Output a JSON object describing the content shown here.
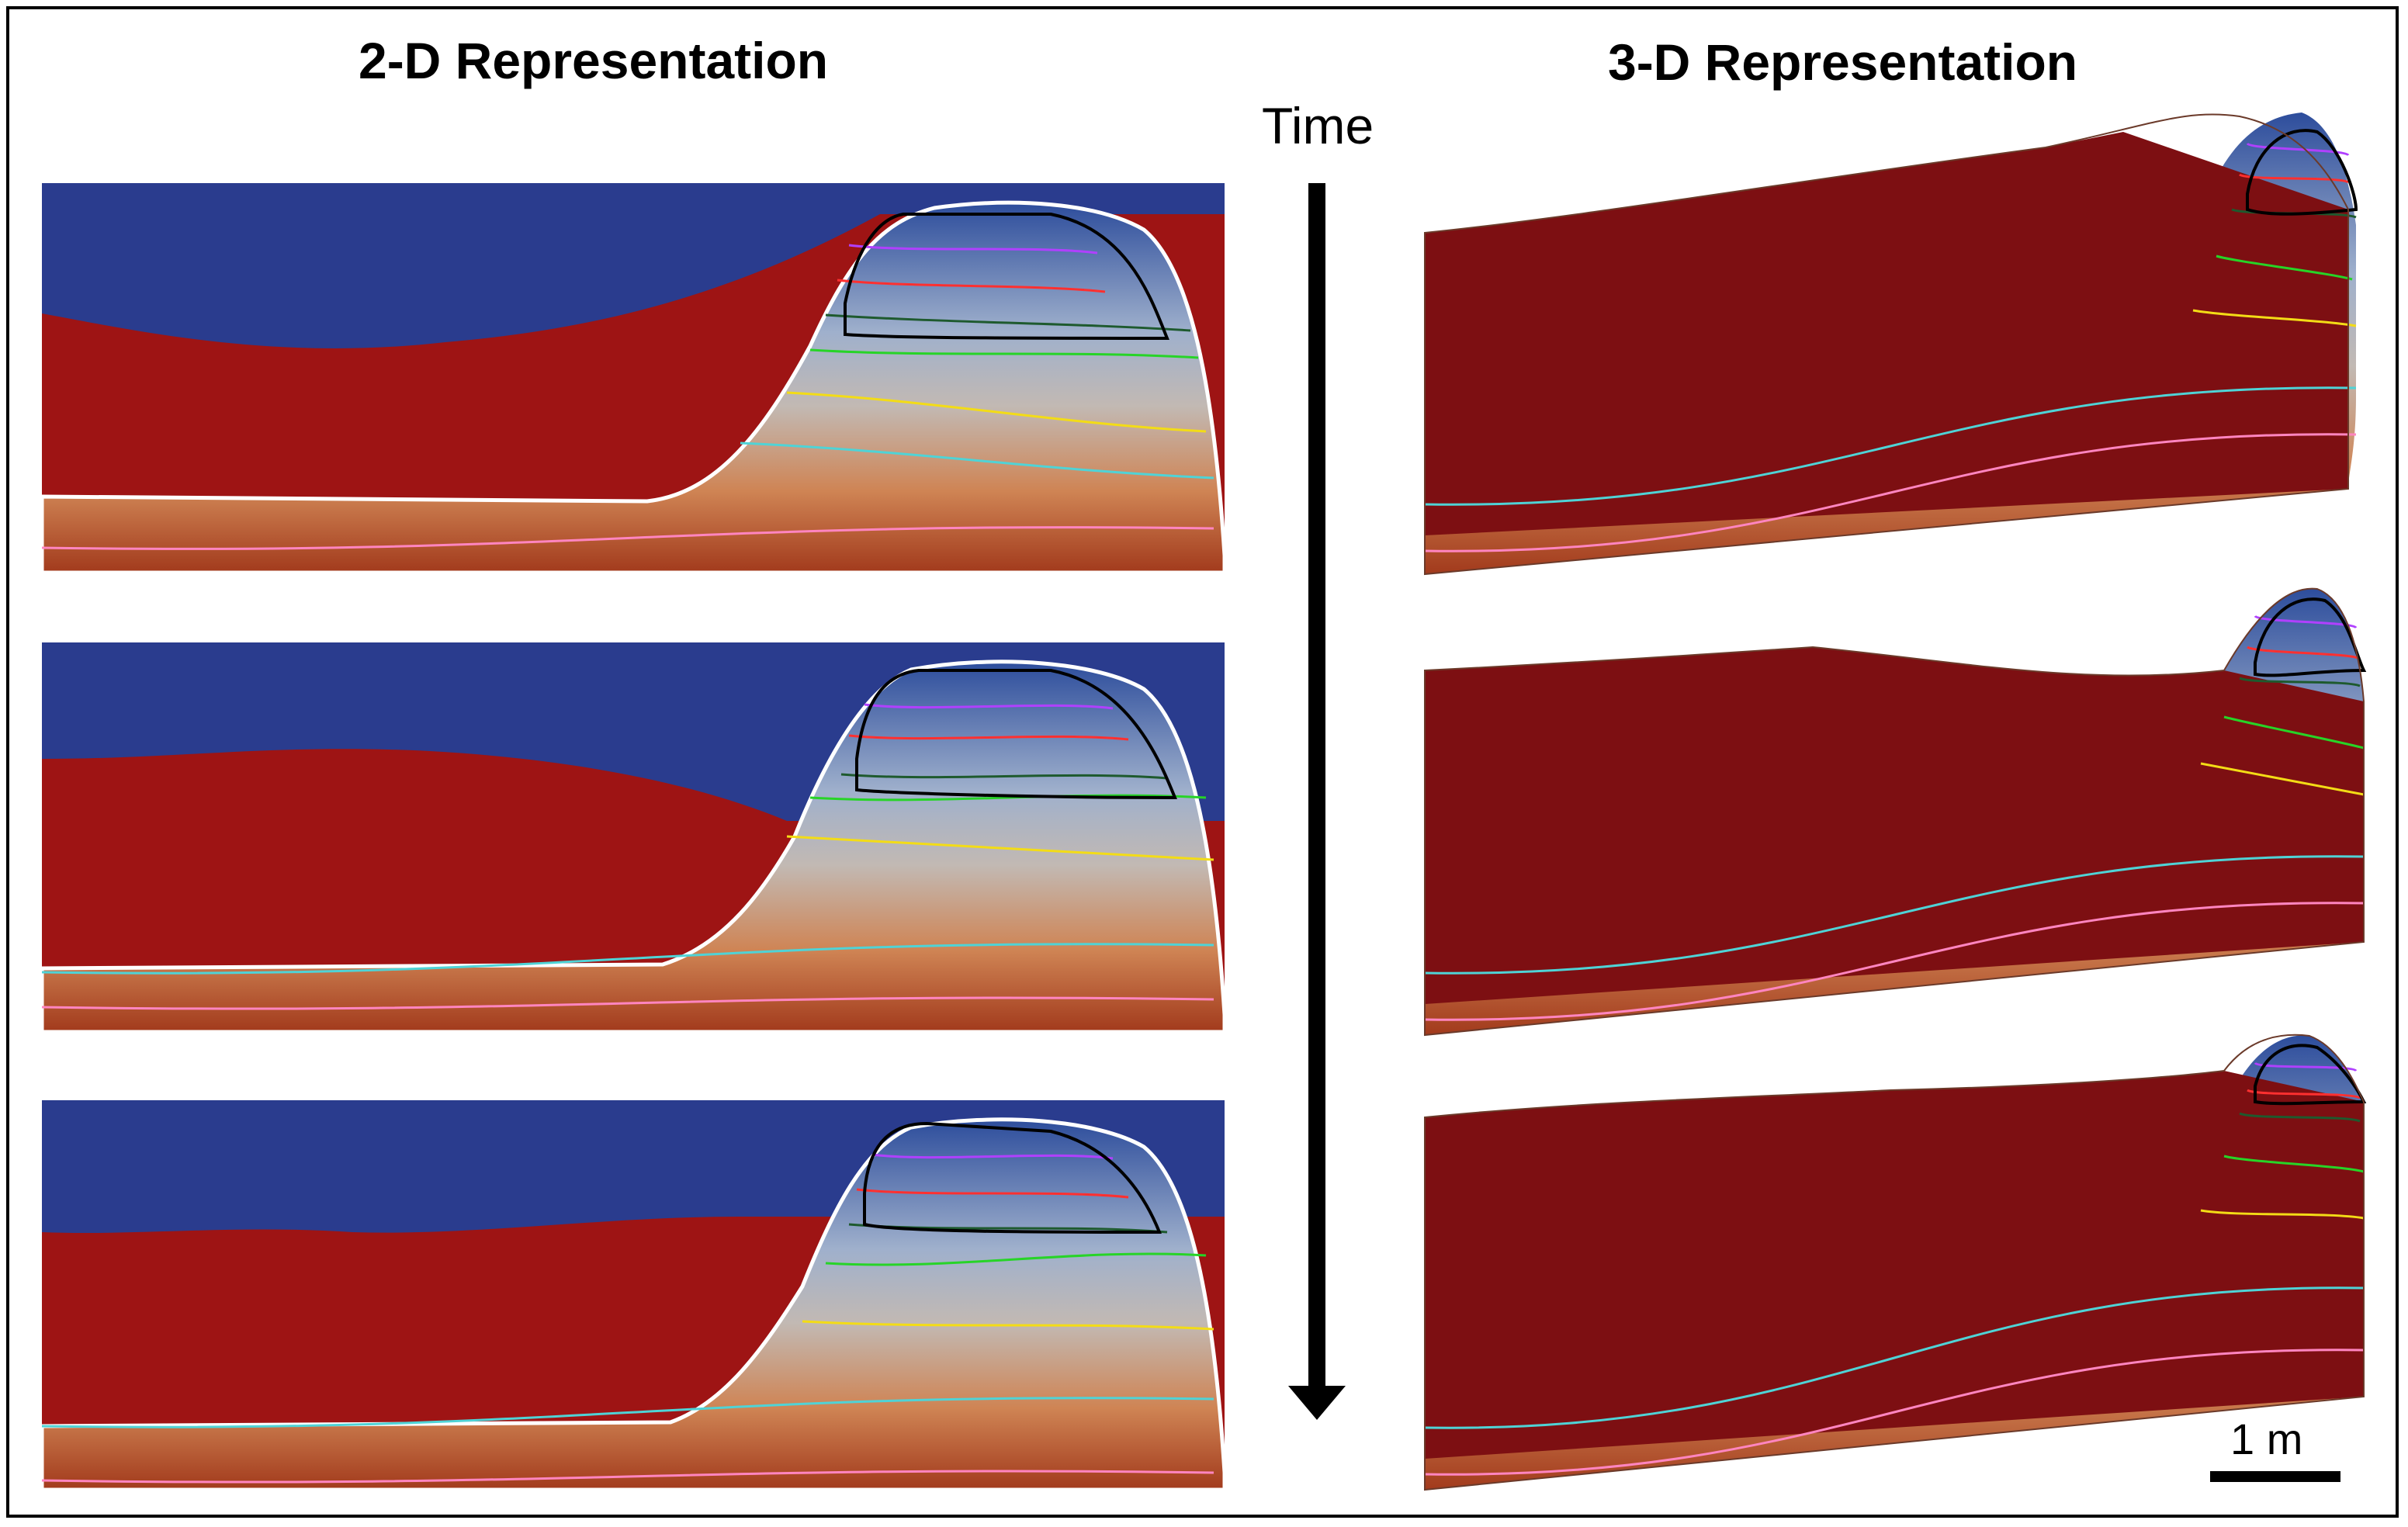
{
  "headings": {
    "left": "2-D Representation",
    "right": "3-D Representation"
  },
  "time_axis": {
    "label": "Time",
    "direction": "down"
  },
  "scale_bar": {
    "label": "1 m"
  },
  "colors": {
    "water": "#2a3c8e",
    "sediment": "#9e1414",
    "sediment_3d": "#7d0f12",
    "dome_top": "#2d4d9c",
    "dome_mid": "#c2b9b3",
    "dome_low": "#cf8454",
    "dome_base": "#a23a1c",
    "outline": "#ffffff",
    "contours": [
      "#b040ff",
      "#ff3030",
      "#1e5a2e",
      "#27d427",
      "#f3dc16",
      "#4fd3d6",
      "#ff85c0"
    ],
    "black_contour": "#000000"
  },
  "panels_2d": [
    {
      "stage": "early"
    },
    {
      "stage": "middle"
    },
    {
      "stage": "late"
    }
  ],
  "panels_3d": [
    {
      "stage": "early"
    },
    {
      "stage": "middle"
    },
    {
      "stage": "late"
    }
  ]
}
